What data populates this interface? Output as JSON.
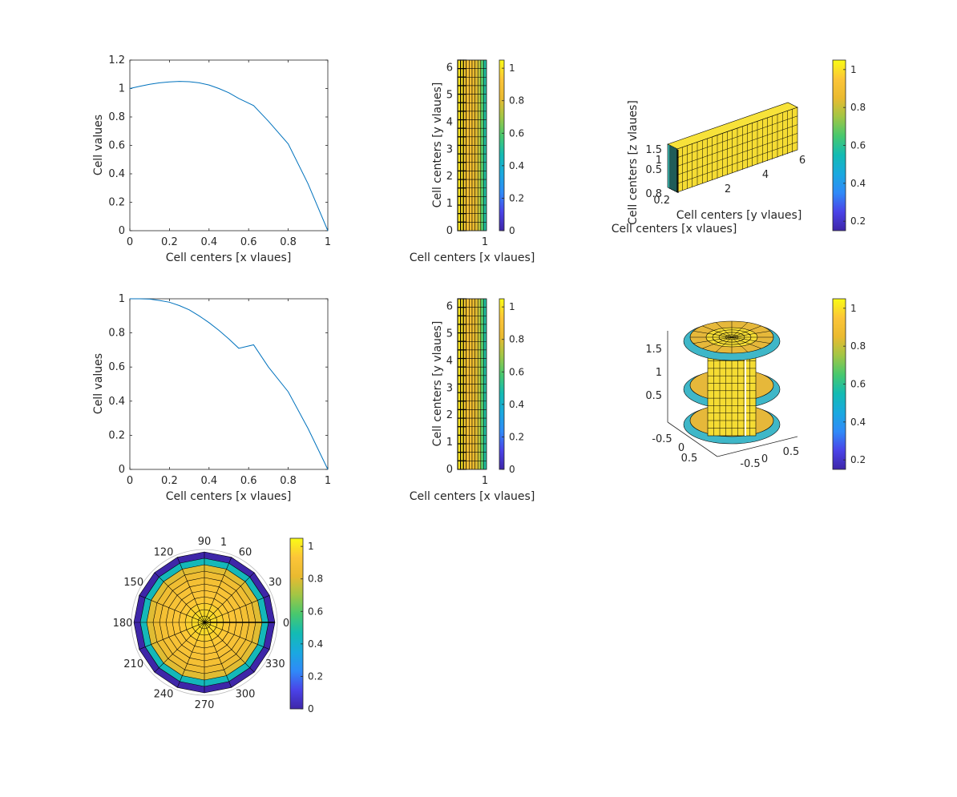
{
  "figure": {
    "title": "",
    "colormap_stops": [
      "#3e26a8",
      "#4a43e8",
      "#2f8af8",
      "#1aa9df",
      "#13bbb3",
      "#48c86e",
      "#a1c645",
      "#eaba30",
      "#fcc538",
      "#f9fb15"
    ]
  },
  "chart_data": [
    {
      "id": "p1",
      "type": "line",
      "xlabel": "Cell centers [x vlaues]",
      "ylabel": "Cell values",
      "xlim": [
        0,
        1
      ],
      "ylim": [
        0,
        1.2
      ],
      "xticks": [
        "0",
        "0.2",
        "0.4",
        "0.6",
        "0.8",
        "1"
      ],
      "yticks": [
        "0",
        "0.2",
        "0.4",
        "0.6",
        "0.8",
        "1",
        "1.2"
      ],
      "series": [
        {
          "color": "#0072bd",
          "x": [
            0,
            0.05,
            0.1,
            0.15,
            0.2,
            0.25,
            0.3,
            0.35,
            0.4,
            0.45,
            0.5,
            0.55,
            0.625,
            0.7,
            0.8,
            0.9,
            1.0
          ],
          "y": [
            1.0,
            1.015,
            1.03,
            1.04,
            1.047,
            1.05,
            1.048,
            1.04,
            1.025,
            1.0,
            0.97,
            0.93,
            0.88,
            0.77,
            0.61,
            0.33,
            0.0
          ]
        }
      ],
      "grid": false
    },
    {
      "id": "p2",
      "type": "heatmap",
      "xlabel": "Cell centers [x vlaues]",
      "ylabel": "Cell centers [y vlaues]",
      "xticks": [
        "1"
      ],
      "yticks": [
        "0",
        "1",
        "2",
        "3",
        "4",
        "5",
        "6"
      ],
      "ylim": [
        0,
        6.283
      ],
      "column_values": [
        1.0,
        1.0,
        0.95,
        0.9,
        0.85,
        0.82,
        0.8,
        0.75,
        0.6,
        0.5
      ],
      "colorbar": {
        "ticks": [
          "0",
          "0.2",
          "0.4",
          "0.6",
          "0.8",
          "1"
        ],
        "range": [
          0,
          1.05
        ]
      }
    },
    {
      "id": "p3",
      "type": "heatmap",
      "view": "3d",
      "xlabel": "Cell centers [x vlaues]",
      "ylabel": "Cell centers [y vlaues]",
      "zlabel": "Cell centers [z vlaues]",
      "x_ticks": [
        "0.8",
        "0.2"
      ],
      "y_ticks": [
        "2",
        "4",
        "6"
      ],
      "z_ticks": [
        "1.5",
        "1",
        "0.5"
      ],
      "colorbar": {
        "ticks": [
          "0.2",
          "0.4",
          "0.6",
          "0.8",
          "1"
        ],
        "range": [
          0.15,
          1.05
        ]
      }
    },
    {
      "id": "p4",
      "type": "line",
      "xlabel": "Cell centers [x vlaues]",
      "ylabel": "Cell values",
      "xlim": [
        0,
        1
      ],
      "ylim": [
        0,
        1
      ],
      "xticks": [
        "0",
        "0.2",
        "0.4",
        "0.6",
        "0.8",
        "1"
      ],
      "yticks": [
        "0",
        "0.2",
        "0.4",
        "0.6",
        "0.8",
        "1"
      ],
      "series": [
        {
          "color": "#0072bd",
          "x": [
            0,
            0.05,
            0.1,
            0.15,
            0.2,
            0.25,
            0.3,
            0.35,
            0.4,
            0.45,
            0.5,
            0.55,
            0.625,
            0.7,
            0.8,
            0.9,
            1.0
          ],
          "y": [
            1.0,
            1.0,
            0.998,
            0.99,
            0.98,
            0.96,
            0.935,
            0.9,
            0.86,
            0.815,
            0.765,
            0.71,
            0.73,
            0.6,
            0.455,
            0.24,
            0.0
          ]
        }
      ],
      "grid": false
    },
    {
      "id": "p5",
      "type": "heatmap",
      "xlabel": "Cell centers [x vlaues]",
      "ylabel": "Cell centers [y vlaues]",
      "xticks": [
        "1"
      ],
      "yticks": [
        "0",
        "1",
        "2",
        "3",
        "4",
        "5",
        "6"
      ],
      "ylim": [
        0,
        6.283
      ],
      "column_values": [
        1.0,
        1.0,
        0.95,
        0.9,
        0.85,
        0.82,
        0.8,
        0.75,
        0.6,
        0.5
      ],
      "colorbar": {
        "ticks": [
          "0",
          "0.2",
          "0.4",
          "0.6",
          "0.8",
          "1"
        ],
        "range": [
          0,
          1.05
        ]
      }
    },
    {
      "id": "p6",
      "type": "heatmap",
      "view": "3d-cylinder",
      "x_ticks": [
        "-0.5",
        "0",
        "0.5"
      ],
      "y_ticks": [
        "-0.5",
        "0",
        "0.5"
      ],
      "z_ticks": [
        "1.5",
        "1",
        "0.5"
      ],
      "colorbar": {
        "ticks": [
          "0.2",
          "0.4",
          "0.6",
          "0.8",
          "1"
        ],
        "range": [
          0.15,
          1.05
        ]
      }
    },
    {
      "id": "p7",
      "type": "heatmap",
      "view": "polar",
      "angle_ticks": [
        "0",
        "30",
        "60",
        "90",
        "120",
        "150",
        "180",
        "210",
        "240",
        "270",
        "300",
        "330"
      ],
      "radial_ticks": [
        "1"
      ],
      "ring_values": [
        1.0,
        0.98,
        0.96,
        0.94,
        0.92,
        0.9,
        0.88,
        0.85,
        0.8,
        0.45,
        0.0
      ],
      "colorbar": {
        "ticks": [
          "0",
          "0.2",
          "0.4",
          "0.6",
          "0.8",
          "1"
        ],
        "range": [
          0,
          1.05
        ]
      }
    }
  ]
}
